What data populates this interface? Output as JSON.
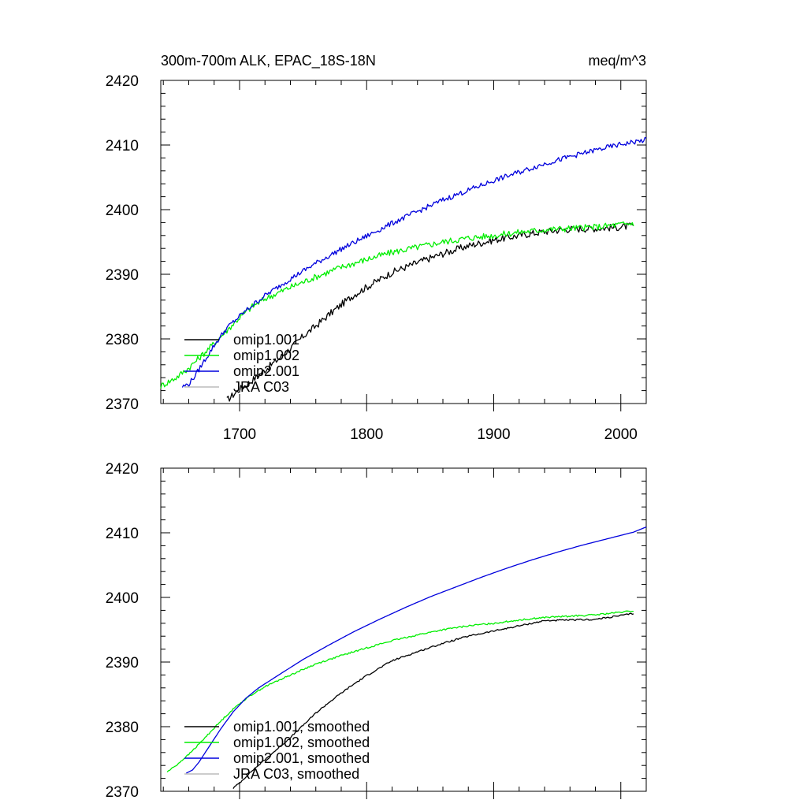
{
  "figure": {
    "title_left": "300m-700m ALK, EPAC_18S-18N",
    "title_right": "meq/m^3"
  },
  "chart_data": [
    {
      "type": "line",
      "title": "300m-700m ALK, EPAC_18S-18N",
      "units": "meq/m^3",
      "xlabel": "",
      "ylabel": "",
      "xlim": [
        1638,
        2020
      ],
      "ylim": [
        2370,
        2420
      ],
      "x_ticks": [
        1700,
        1800,
        1900,
        2000
      ],
      "x_tick_labels": [
        "1700",
        "1800",
        "1900",
        "2000"
      ],
      "y_ticks": [
        2370,
        2380,
        2390,
        2400,
        2410,
        2420
      ],
      "y_tick_labels": [
        "2370",
        "2380",
        "2390",
        "2400",
        "2410",
        "2420"
      ],
      "smoothed": false,
      "legend_position": "lower-left",
      "series": [
        {
          "name": "omip1.001",
          "color": "#000000",
          "noise": 0.55,
          "x": [
            1690,
            1700,
            1710,
            1720,
            1730,
            1740,
            1750,
            1760,
            1770,
            1780,
            1790,
            1800,
            1820,
            1840,
            1860,
            1880,
            1900,
            1920,
            1940,
            1960,
            1980,
            2000,
            2010
          ],
          "y": [
            2370.5,
            2372.2,
            2373.6,
            2375.2,
            2376.8,
            2378.5,
            2380.4,
            2382.0,
            2383.7,
            2385.3,
            2386.8,
            2388.0,
            2390.3,
            2391.8,
            2393.2,
            2394.4,
            2395.3,
            2396.0,
            2396.6,
            2397.0,
            2397.1,
            2397.3,
            2397.5
          ]
        },
        {
          "name": "omip1.002",
          "color": "#00ee00",
          "noise": 0.5,
          "x": [
            1638,
            1650,
            1660,
            1670,
            1680,
            1690,
            1700,
            1710,
            1720,
            1740,
            1760,
            1780,
            1800,
            1820,
            1840,
            1860,
            1880,
            1900,
            1920,
            1940,
            1960,
            1980,
            2000,
            2010
          ],
          "y": [
            2372.7,
            2374.0,
            2375.5,
            2377.4,
            2379.3,
            2381.3,
            2383.3,
            2385.0,
            2386.2,
            2388.0,
            2389.6,
            2391.1,
            2392.3,
            2393.4,
            2394.2,
            2395.0,
            2395.6,
            2396.0,
            2396.5,
            2396.9,
            2397.1,
            2397.3,
            2397.7,
            2397.9
          ]
        },
        {
          "name": "omip2.001",
          "color": "#0000dd",
          "noise": 0.4,
          "x": [
            1655,
            1660,
            1665,
            1670,
            1680,
            1690,
            1700,
            1710,
            1720,
            1740,
            1760,
            1780,
            1800,
            1820,
            1840,
            1860,
            1880,
            1900,
            1920,
            1940,
            1960,
            1980,
            2000,
            2020
          ],
          "y": [
            2372.6,
            2373.0,
            2374.3,
            2375.9,
            2379.0,
            2381.7,
            2383.5,
            2385.2,
            2386.7,
            2389.3,
            2391.7,
            2393.9,
            2395.9,
            2397.9,
            2399.7,
            2401.5,
            2403.0,
            2404.5,
            2405.8,
            2407.1,
            2408.2,
            2409.2,
            2410.1,
            2410.8
          ]
        },
        {
          "name": "JRA C03",
          "color": "#bbbbbb",
          "x": [],
          "y": []
        }
      ]
    },
    {
      "type": "line",
      "title": "",
      "xlabel": "",
      "ylabel": "",
      "xlim": [
        1638,
        2020
      ],
      "ylim": [
        2370,
        2420
      ],
      "x_ticks": [
        1700,
        1800,
        1900,
        2000
      ],
      "x_tick_labels": [],
      "y_ticks": [
        2370,
        2380,
        2390,
        2400,
        2410,
        2420
      ],
      "y_tick_labels": [
        "2370",
        "2380",
        "2390",
        "2400",
        "2410",
        "2420"
      ],
      "smoothed": true,
      "legend_position": "lower-left",
      "series": [
        {
          "name": "omip1.001, smoothed",
          "color": "#000000",
          "noise": 0.12,
          "x": [
            1695,
            1700,
            1710,
            1720,
            1730,
            1740,
            1750,
            1760,
            1770,
            1780,
            1790,
            1800,
            1820,
            1840,
            1860,
            1880,
            1900,
            1920,
            1940,
            1960,
            1980,
            2000,
            2010
          ],
          "y": [
            2370.5,
            2371.3,
            2373.2,
            2374.9,
            2376.6,
            2378.3,
            2380.2,
            2382.1,
            2383.7,
            2385.2,
            2386.6,
            2387.9,
            2390.2,
            2391.6,
            2392.9,
            2394.0,
            2394.8,
            2395.6,
            2396.4,
            2396.5,
            2396.6,
            2397.2,
            2397.5
          ]
        },
        {
          "name": "omip1.002, smoothed",
          "color": "#00ee00",
          "noise": 0.12,
          "x": [
            1643,
            1650,
            1660,
            1670,
            1680,
            1690,
            1700,
            1710,
            1720,
            1740,
            1760,
            1780,
            1800,
            1820,
            1840,
            1860,
            1880,
            1900,
            1920,
            1940,
            1960,
            1980,
            2000,
            2010
          ],
          "y": [
            2373.0,
            2374.0,
            2375.7,
            2377.7,
            2379.8,
            2381.8,
            2383.6,
            2385.0,
            2386.2,
            2388.0,
            2389.7,
            2391.0,
            2392.2,
            2393.3,
            2394.2,
            2395.0,
            2395.6,
            2396.0,
            2396.5,
            2396.9,
            2397.1,
            2397.3,
            2397.7,
            2397.9
          ]
        },
        {
          "name": "omip2.001, smoothed",
          "color": "#0000dd",
          "noise": 0.0,
          "x": [
            1658,
            1663,
            1668,
            1675,
            1685,
            1695,
            1705,
            1715,
            1730,
            1750,
            1770,
            1790,
            1810,
            1830,
            1850,
            1870,
            1890,
            1910,
            1930,
            1950,
            1970,
            1990,
            2010,
            2020
          ],
          "y": [
            2372.8,
            2373.3,
            2374.5,
            2376.6,
            2379.6,
            2382.3,
            2384.4,
            2386.0,
            2387.9,
            2390.4,
            2392.6,
            2394.7,
            2396.6,
            2398.4,
            2400.1,
            2401.6,
            2403.1,
            2404.5,
            2405.8,
            2407.0,
            2408.1,
            2409.1,
            2410.1,
            2410.9
          ]
        },
        {
          "name": "JRA C03, smoothed",
          "color": "#bbbbbb",
          "x": [],
          "y": []
        }
      ]
    }
  ]
}
